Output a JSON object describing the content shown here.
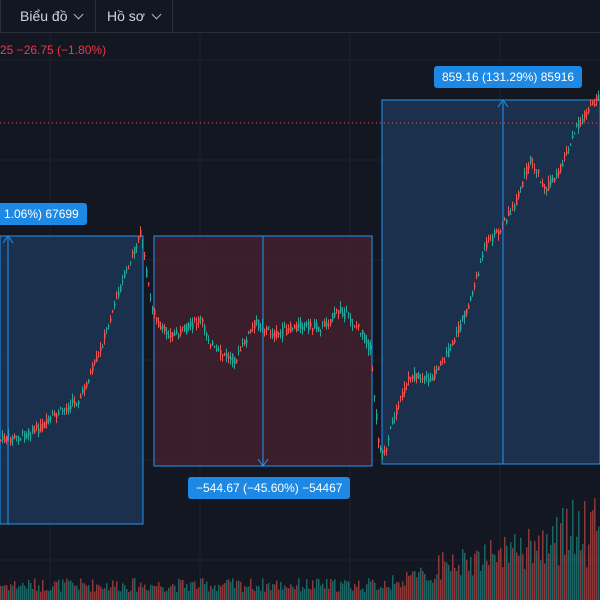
{
  "toolbar": {
    "chart_menu_label": "Biểu đồ",
    "profile_menu_label": "Hồ sơ"
  },
  "price_info": {
    "text": "25  −26.75 (−1.80%)"
  },
  "measurements": [
    {
      "label": "1.06%) 67699",
      "direction": "up"
    },
    {
      "label": "−544.67 (−45.60%) −54467",
      "direction": "down"
    },
    {
      "label": "859.16 (131.29%) 85916",
      "direction": "up"
    }
  ],
  "colors": {
    "background": "#131722",
    "up": "#26a69a",
    "down": "#ef5350",
    "up_zone": "#1f3a5c",
    "down_zone": "#4a2230",
    "measure_line": "#2196f3",
    "label_bg": "#1e88e5"
  },
  "icons": {
    "chart_menu": "chevron-down-icon",
    "profile_menu": "chevron-down-icon"
  }
}
